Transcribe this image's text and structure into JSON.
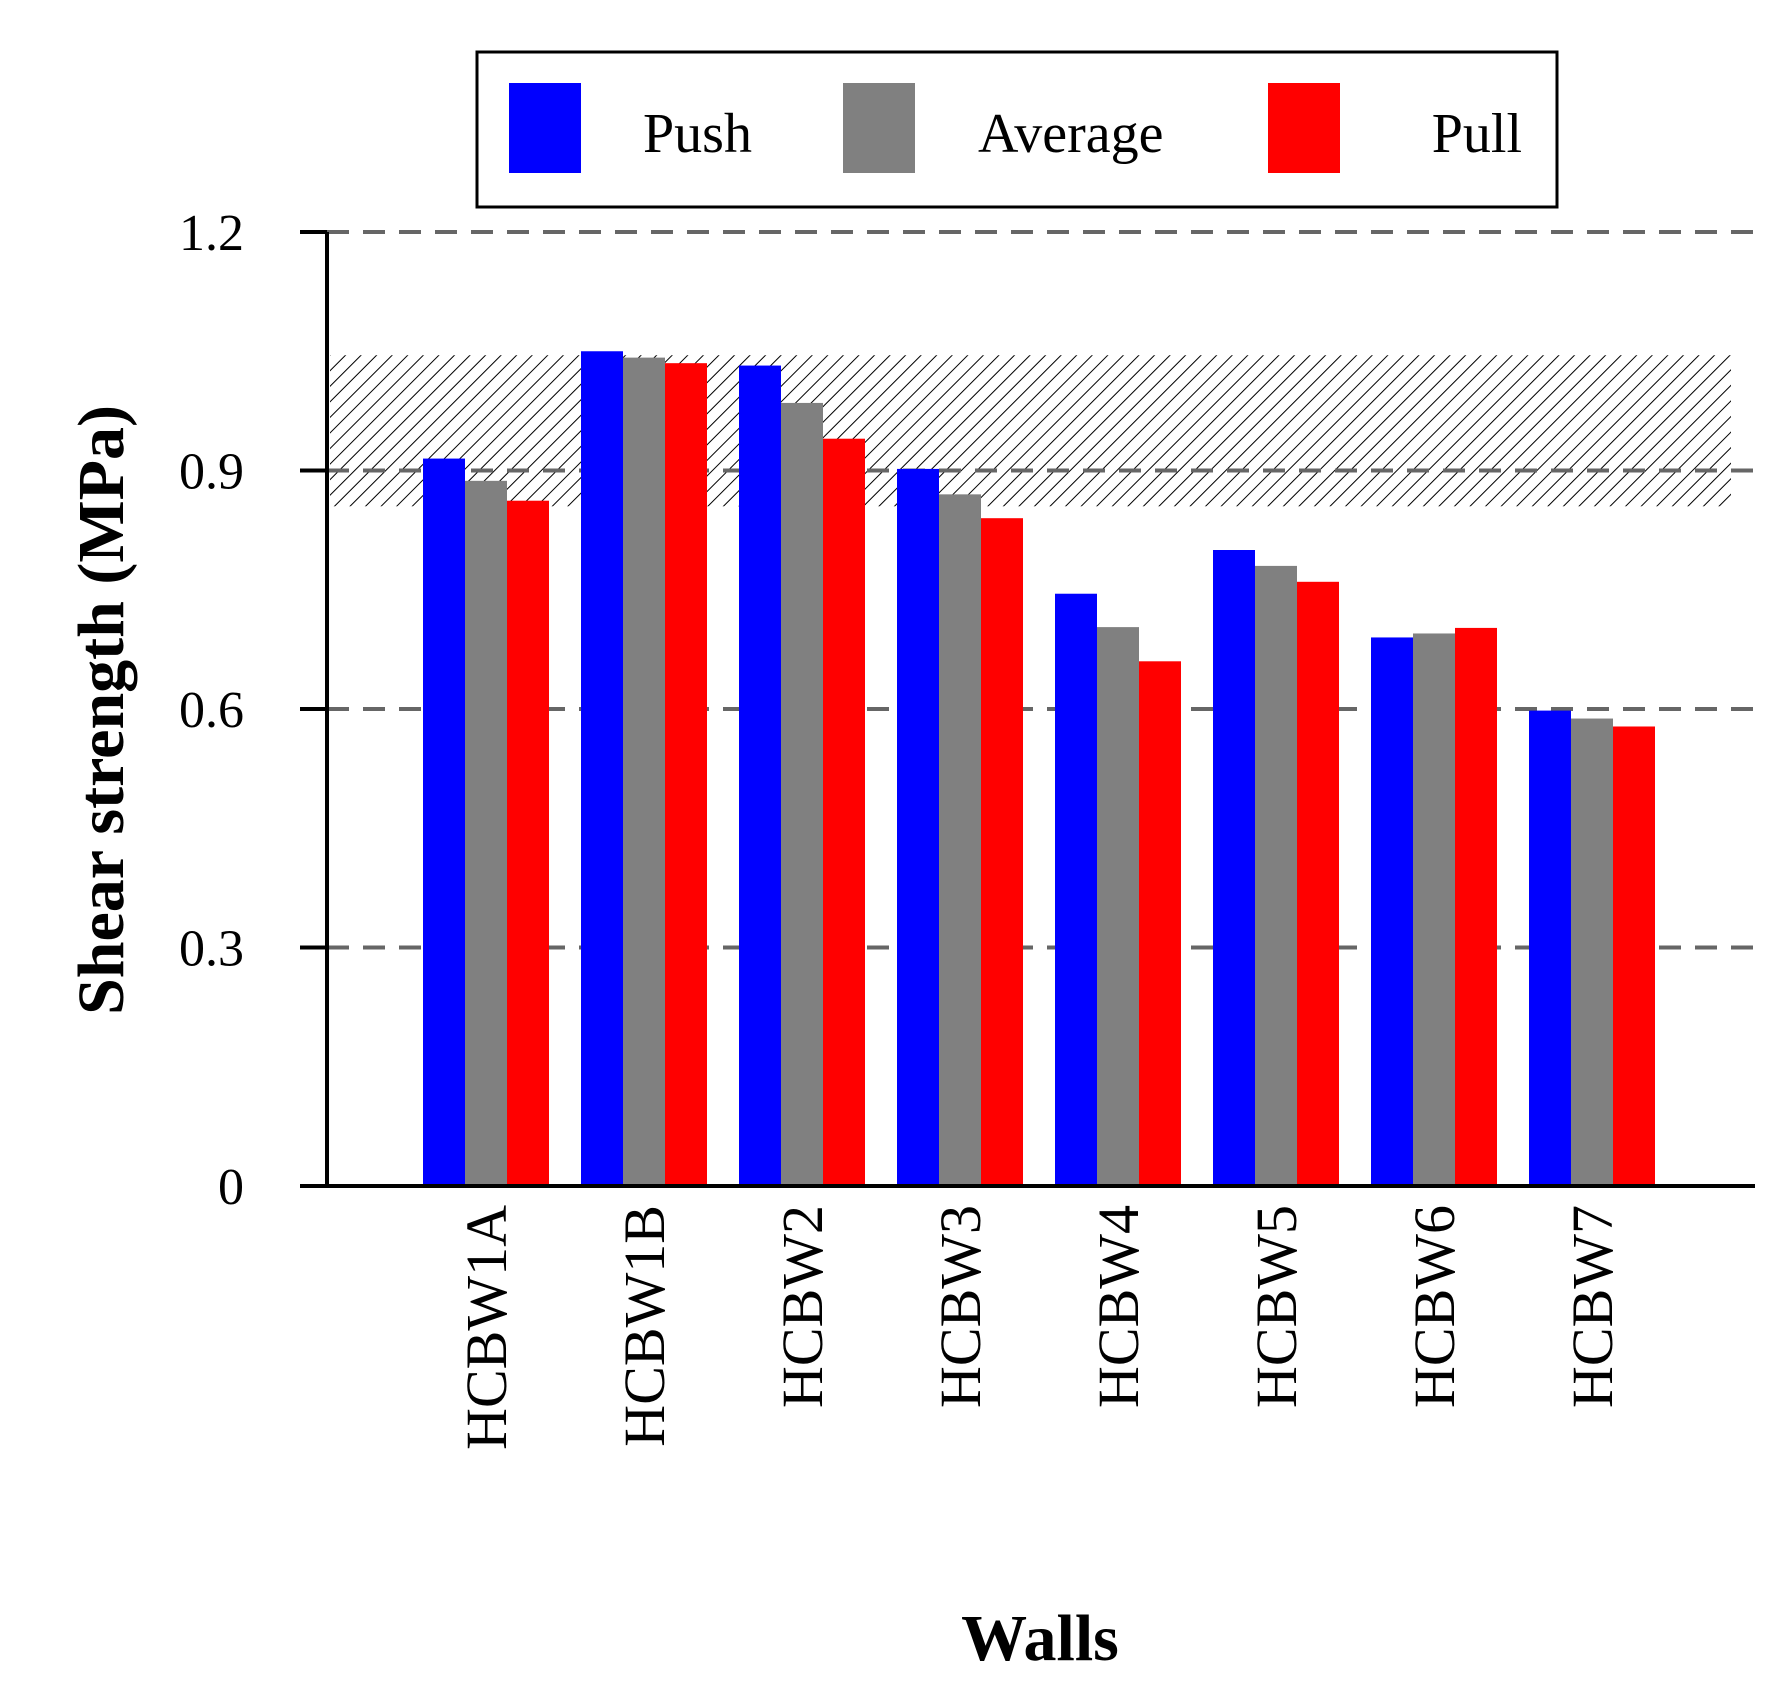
{
  "chart_data": {
    "type": "bar",
    "title": "",
    "xlabel": "Walls",
    "ylabel": "Shear strength (MPa)",
    "ylim": [
      0,
      1.2
    ],
    "yticks": [
      0,
      0.3,
      0.6,
      0.9,
      1.2
    ],
    "ytick_labels": [
      "0",
      "0.3",
      "0.6",
      "0.9",
      "1.2"
    ],
    "grid": "dashed horizontal lines at 0.3, 0.6, 0.9, 1.2",
    "legend_position": "top",
    "categories": [
      "HCBW1A",
      "HCBW1B",
      "HCBW2",
      "HCBW3",
      "HCBW4",
      "HCBW5",
      "HCBW6",
      "HCBW7"
    ],
    "series": [
      {
        "name": "Push",
        "color": "#0000ff",
        "values": [
          0.915,
          1.05,
          1.032,
          0.902,
          0.745,
          0.8,
          0.69,
          0.598
        ]
      },
      {
        "name": "Average",
        "color": "#808080",
        "values": [
          0.887,
          1.042,
          0.985,
          0.87,
          0.703,
          0.78,
          0.695,
          0.588
        ]
      },
      {
        "name": "Pull",
        "color": "#ff0000",
        "values": [
          0.862,
          1.035,
          0.94,
          0.84,
          0.66,
          0.76,
          0.702,
          0.578
        ]
      }
    ],
    "shaded_band": {
      "y_from": 0.855,
      "y_to": 1.045,
      "pattern": "diagonal hatch"
    }
  }
}
